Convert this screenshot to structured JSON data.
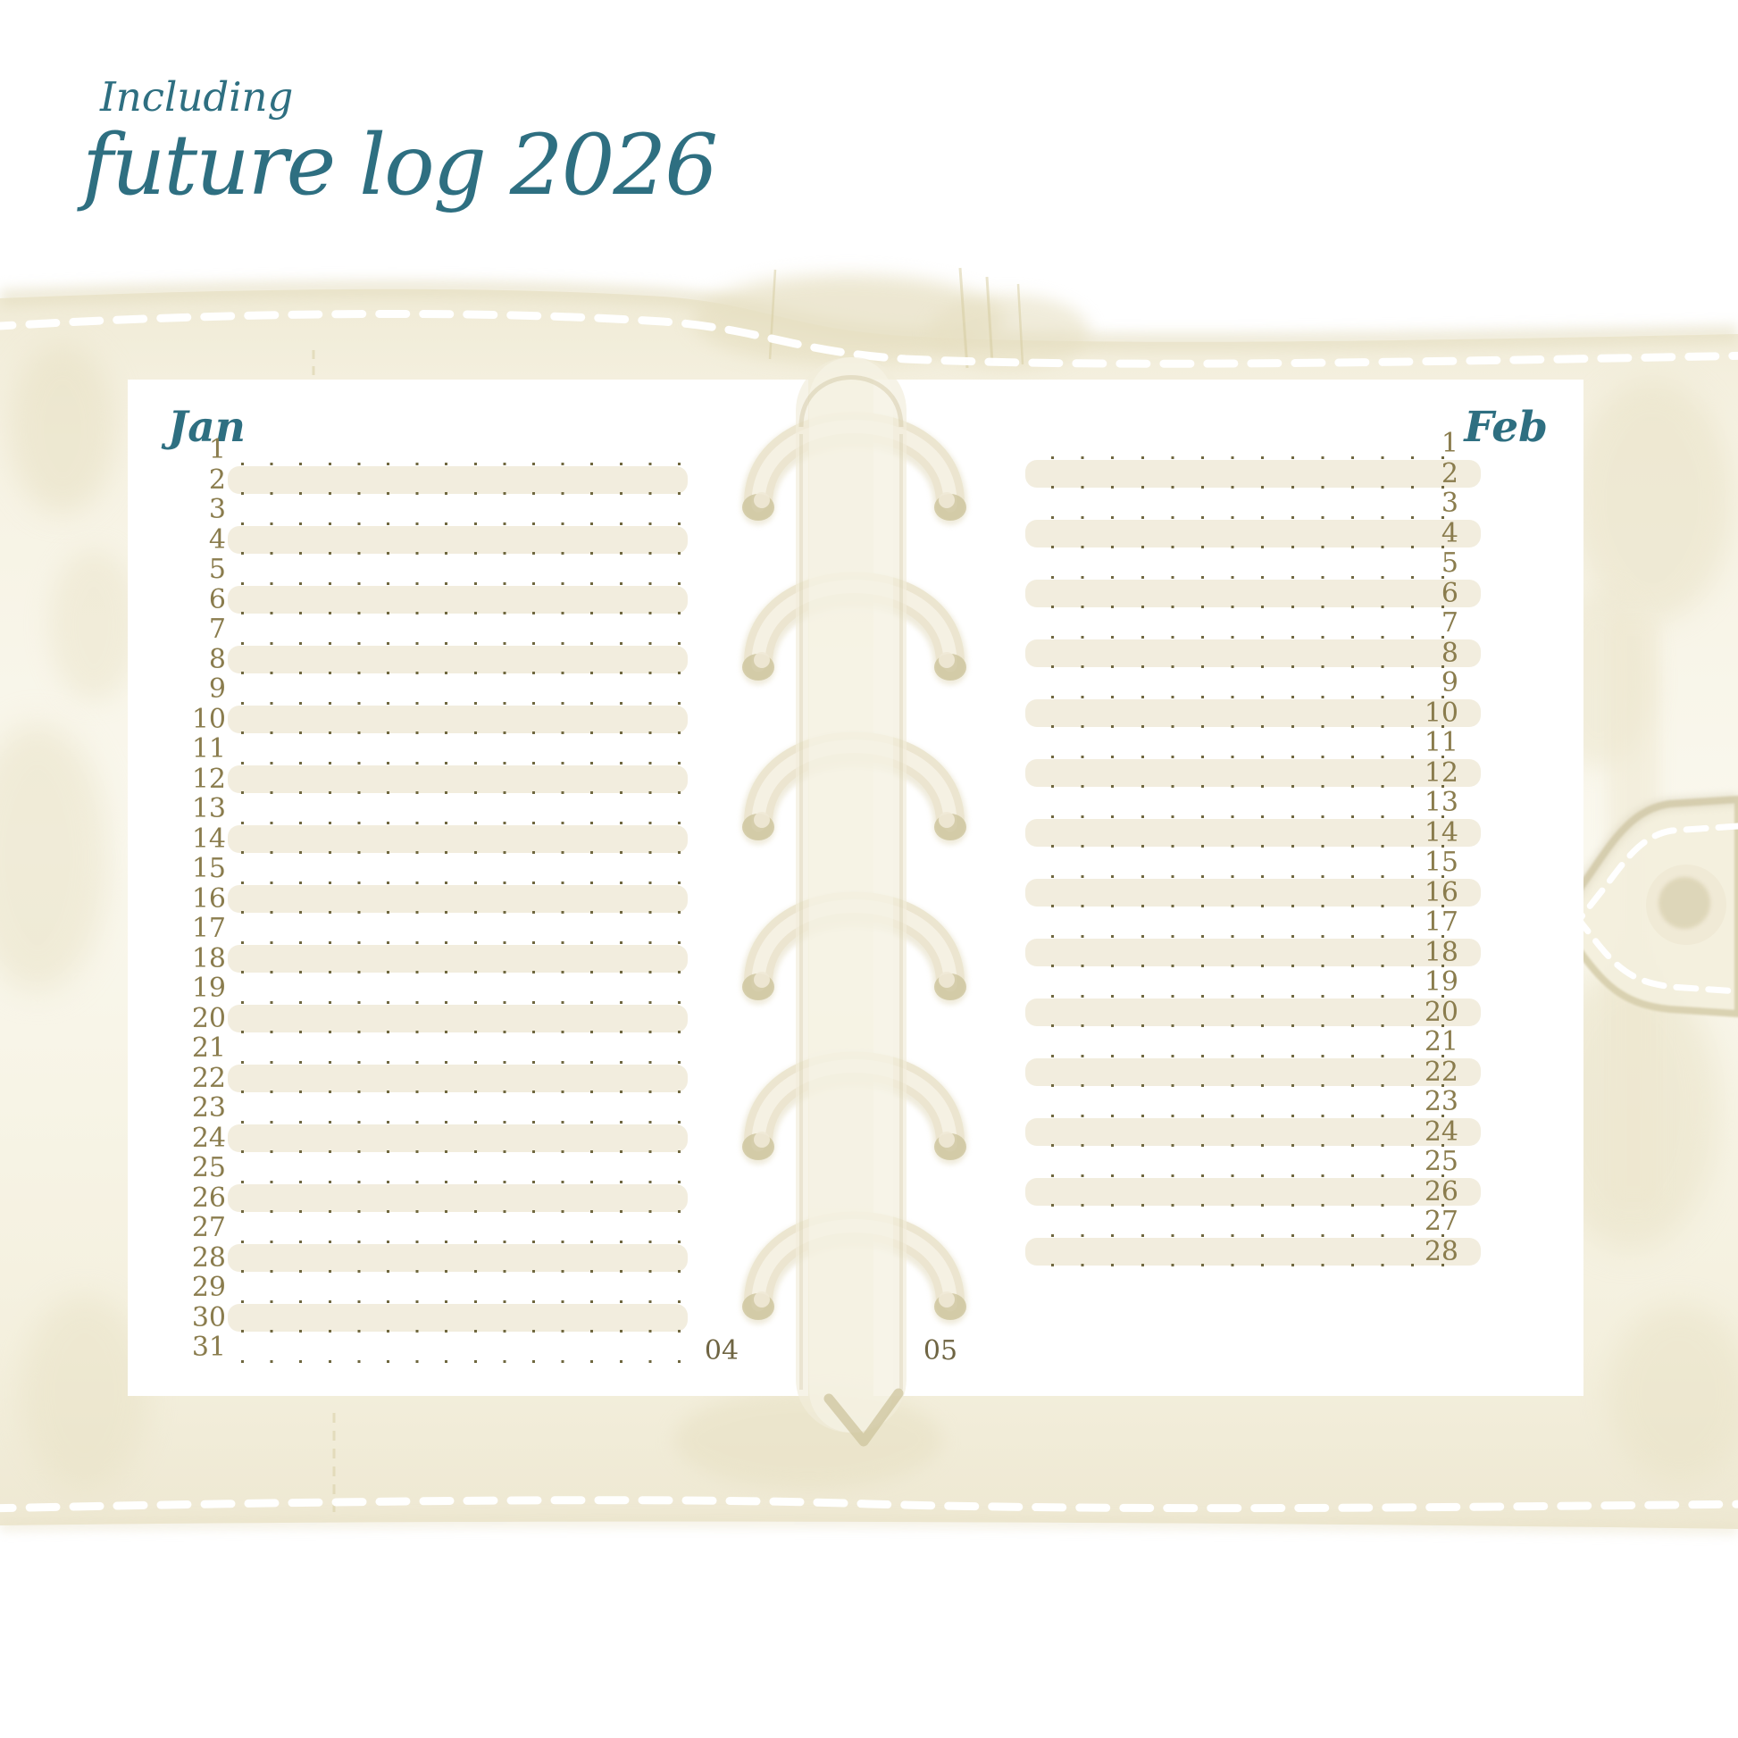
{
  "title": {
    "eyebrow": "Including",
    "heading": "future log 2026"
  },
  "months": [
    {
      "name": "Jan",
      "side": "left",
      "page_number": "04",
      "days": [
        1,
        2,
        3,
        4,
        5,
        6,
        7,
        8,
        9,
        10,
        11,
        12,
        13,
        14,
        15,
        16,
        17,
        18,
        19,
        20,
        21,
        22,
        23,
        24,
        25,
        26,
        27,
        28,
        29,
        30,
        31
      ]
    },
    {
      "name": "Feb",
      "side": "right",
      "page_number": "05",
      "days": [
        1,
        2,
        3,
        4,
        5,
        6,
        7,
        8,
        9,
        10,
        11,
        12,
        13,
        14,
        15,
        16,
        17,
        18,
        19,
        20,
        21,
        22,
        23,
        24,
        25,
        26,
        27,
        28
      ]
    }
  ],
  "binder": {
    "ring_count": 6
  },
  "colors": {
    "accent_teal": "#2e6f81",
    "day_number": "#8a7c4d",
    "page_number": "#6f6543",
    "row_highlight": "#f2edde",
    "dot": "#6f673f",
    "cover_beige": "#f2edda",
    "page_white": "#ffffff"
  }
}
